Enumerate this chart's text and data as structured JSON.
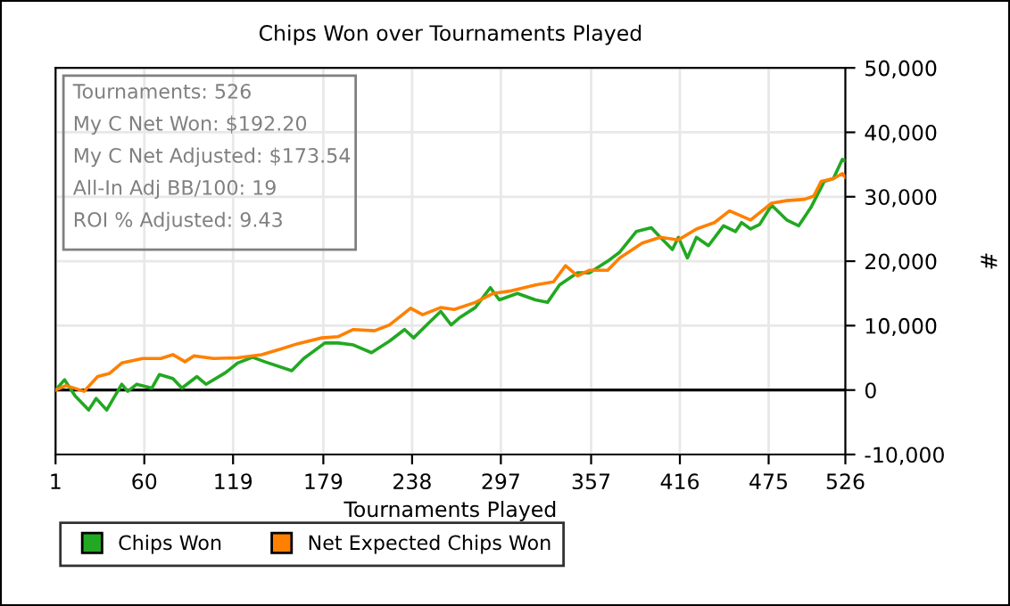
{
  "chart_data": {
    "type": "line",
    "title": "Chips Won over Tournaments Played",
    "xlabel": "Tournaments Played",
    "ylabel": "#",
    "annotations": [
      "Tournaments: 526",
      "My C Net Won: $192.20",
      "My C Net Adjusted: $173.54",
      "All-In Adj BB/100: 19",
      "ROI % Adjusted: 9.43"
    ],
    "series": [
      {
        "name": "Chips Won",
        "color": "#22a822",
        "x": [
          1,
          7,
          14,
          23,
          28,
          35,
          45,
          49,
          55,
          65,
          70,
          79,
          85,
          95,
          101,
          114,
          122,
          132,
          140,
          158,
          166,
          180,
          189,
          199,
          211,
          223,
          233,
          239,
          249,
          257,
          264,
          270,
          280,
          290,
          296,
          308,
          320,
          328,
          336,
          348,
          356,
          368,
          376,
          387,
          397,
          403,
          411,
          415,
          421,
          427,
          435,
          445,
          453,
          457,
          463,
          469,
          477,
          487,
          495,
          503,
          512,
          518,
          524,
          526
        ],
        "values": [
          0,
          1600,
          -900,
          -3100,
          -1300,
          -3100,
          900,
          -200,
          900,
          300,
          2400,
          1800,
          300,
          2100,
          900,
          2700,
          4200,
          5100,
          4400,
          3000,
          4900,
          7300,
          7300,
          7000,
          5800,
          7600,
          9400,
          8100,
          10400,
          12200,
          10100,
          11300,
          12800,
          15900,
          14000,
          15000,
          14000,
          13600,
          16300,
          18200,
          18200,
          20000,
          21400,
          24600,
          25200,
          23700,
          21800,
          23700,
          20500,
          23700,
          22400,
          25500,
          24600,
          26000,
          25000,
          25700,
          28700,
          26400,
          25500,
          28300,
          32400,
          32800,
          35800,
          35600
        ]
      },
      {
        "name": "Net Expected Chips Won",
        "color": "#ff8000",
        "x": [
          1,
          8,
          20,
          29,
          37,
          45,
          59,
          71,
          79,
          87,
          93,
          106,
          122,
          138,
          151,
          162,
          178,
          189,
          199,
          213,
          223,
          237,
          245,
          257,
          266,
          280,
          292,
          304,
          320,
          332,
          340,
          348,
          356,
          368,
          376,
          391,
          403,
          415,
          427,
          439,
          449,
          463,
          477,
          487,
          499,
          505,
          510,
          518,
          524,
          526
        ],
        "values": [
          0,
          700,
          -200,
          2100,
          2600,
          4200,
          4900,
          4900,
          5500,
          4400,
          5300,
          4900,
          5000,
          5500,
          6400,
          7200,
          8100,
          8300,
          9400,
          9200,
          10100,
          12700,
          11700,
          12800,
          12500,
          13600,
          15000,
          15400,
          16300,
          16800,
          19300,
          17700,
          18600,
          18600,
          20500,
          22800,
          23700,
          23300,
          25000,
          26000,
          27800,
          26400,
          29000,
          29400,
          29600,
          30100,
          32400,
          32800,
          33600,
          33000
        ]
      }
    ],
    "xlim": [
      1,
      526
    ],
    "xticks": [
      1,
      60,
      119,
      179,
      238,
      297,
      357,
      416,
      475,
      526
    ],
    "ylim": [
      -10000,
      50000
    ],
    "yticks": [
      {
        "value": -10000,
        "label": "-10,000"
      },
      {
        "value": 0,
        "label": "0"
      },
      {
        "value": 10000,
        "label": "10,000"
      },
      {
        "value": 20000,
        "label": "20,000"
      },
      {
        "value": 30000,
        "label": "30,000"
      },
      {
        "value": 40000,
        "label": "40,000"
      },
      {
        "value": 50000,
        "label": "50,000"
      }
    ],
    "ref_lines": [
      {
        "axis": "y",
        "value": 0,
        "color": "#000000"
      }
    ],
    "grid": true,
    "legend": "bottom left",
    "marker": "none",
    "line_style": "solid"
  }
}
